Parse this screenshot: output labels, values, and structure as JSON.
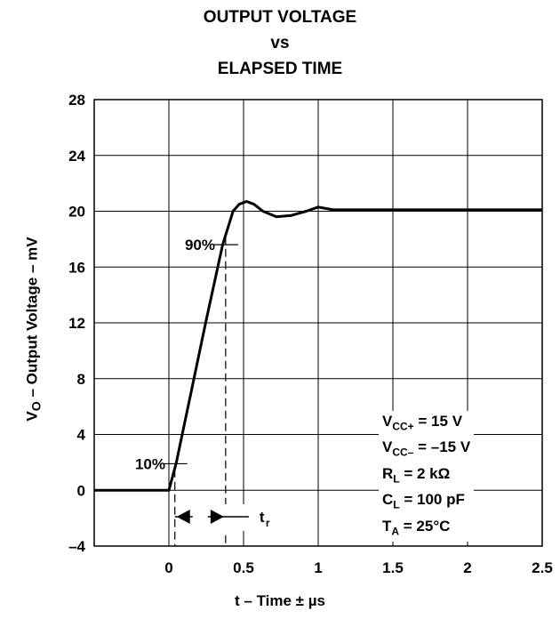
{
  "title": {
    "line1": "OUTPUT VOLTAGE",
    "line2": "vs",
    "line3": "ELAPSED TIME"
  },
  "axes": {
    "ylabel_main": "V",
    "ylabel_sub": "O",
    "ylabel_rest": " – Output Voltage – mV",
    "xlabel": "t – Time ± µs"
  },
  "annotations": {
    "p10": "10%",
    "p90": "90%",
    "tr_main": "t",
    "tr_sub": "r"
  },
  "conditions": {
    "l1_pre": "V",
    "l1_sub": "CC+",
    "l1_post": " = 15 V",
    "l2_pre": "V",
    "l2_sub": "CC–",
    "l2_post": " = –15 V",
    "l3_pre": "R",
    "l3_sub": "L",
    "l3_post": " = 2 kΩ",
    "l4_pre": "C",
    "l4_sub": "L",
    "l4_post": " = 100 pF",
    "l5_pre": "T",
    "l5_sub": "A",
    "l5_post": " = 25°C"
  },
  "chart_data": {
    "type": "line",
    "title": "OUTPUT VOLTAGE vs ELAPSED TIME",
    "xlabel": "t – Time ± µs",
    "ylabel": "VO – Output Voltage – mV",
    "xlim": [
      -0.5,
      2.5
    ],
    "ylim": [
      -4,
      28
    ],
    "xticks": [
      0,
      0.5,
      1,
      1.5,
      2,
      2.5
    ],
    "xtick_labels": [
      "0",
      "0.5",
      "1",
      "1.5",
      "2",
      "2.5"
    ],
    "yticks": [
      -4,
      0,
      4,
      8,
      12,
      16,
      20,
      24,
      28
    ],
    "ytick_labels": [
      "–4",
      "0",
      "4",
      "8",
      "12",
      "16",
      "20",
      "24",
      "28"
    ],
    "grid": true,
    "series": [
      {
        "x": [
          -0.5,
          0.0,
          0.05,
          0.15,
          0.25,
          0.36,
          0.43,
          0.47,
          0.52,
          0.57,
          0.63,
          0.72,
          0.82,
          0.92,
          1.0,
          1.05,
          1.1,
          1.3,
          1.6,
          2.0,
          2.5
        ],
        "y": [
          0,
          0,
          2,
          7.1,
          12.2,
          17.6,
          20.0,
          20.5,
          20.7,
          20.5,
          20.0,
          19.6,
          19.7,
          20.0,
          20.3,
          20.2,
          20.1,
          20.1,
          20.1,
          20.1,
          20.1
        ]
      }
    ],
    "markers": {
      "t10": 0.04,
      "t90": 0.38
    }
  }
}
